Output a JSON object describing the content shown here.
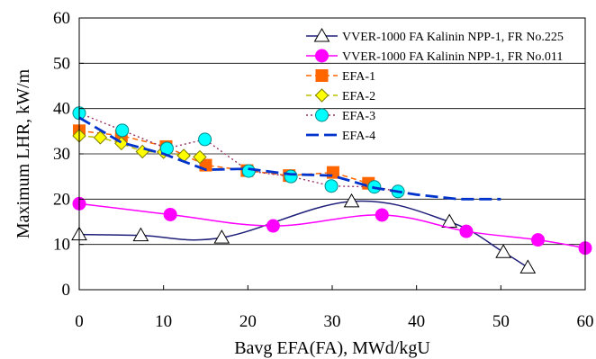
{
  "chart_data": {
    "type": "line",
    "xlabel": "Bavg EFA(FA), MWd/kgU",
    "ylabel": "Maximum LHR, kW/m",
    "xlim": [
      0,
      60
    ],
    "ylim": [
      0,
      60
    ],
    "xticks": [
      "0",
      "10",
      "20",
      "30",
      "40",
      "50",
      "60"
    ],
    "yticks": [
      "0",
      "10",
      "20",
      "30",
      "40",
      "50",
      "60"
    ],
    "grid": "horizontal",
    "legend_position": "top-right",
    "series": [
      {
        "name": "VVER-1000 FA Kalinin NPP-1, FR No.225",
        "color": "#1f1f7a",
        "line": "solid-smooth",
        "marker": "triangle",
        "marker_fill": "#ffffff",
        "x": [
          0,
          7.3,
          16.9,
          32.3,
          43.9,
          50.3,
          53.2
        ],
        "y": [
          12.2,
          12.0,
          11.5,
          19.5,
          15.0,
          8.3,
          4.9
        ]
      },
      {
        "name": "VVER-1000 FA Kalinin NPP-1, FR No.011",
        "color": "#ff00ff",
        "line": "solid-smooth",
        "marker": "circle",
        "marker_fill": "#ff00ff",
        "x": [
          0,
          10.8,
          23.0,
          35.9,
          45.9,
          54.4,
          60.0
        ],
        "y": [
          19.0,
          16.6,
          14.1,
          16.5,
          12.9,
          11.0,
          9.2
        ]
      },
      {
        "name": "EFA-1",
        "color": "#ff6600",
        "line": "dashed",
        "marker": "square",
        "marker_fill": "#ff6600",
        "x": [
          0,
          5.0,
          10.3,
          15.0,
          19.9,
          24.9,
          30.1,
          34.3
        ],
        "y": [
          35.1,
          34.0,
          31.6,
          27.5,
          26.3,
          25.2,
          25.9,
          23.5
        ]
      },
      {
        "name": "EFA-2",
        "color": "#bfbf00",
        "line": "dashed",
        "marker": "diamond",
        "marker_fill": "#ffff00",
        "x": [
          0,
          2.5,
          5.0,
          7.5,
          10.0,
          12.4,
          14.3
        ],
        "y": [
          34.0,
          33.6,
          32.3,
          30.5,
          30.4,
          29.6,
          29.3
        ]
      },
      {
        "name": "EFA-3",
        "color": "#993366",
        "line": "dotted",
        "marker": "circle",
        "marker_fill": "#00ffff",
        "x": [
          0,
          5.1,
          10.4,
          14.9,
          20.1,
          25.1,
          29.9,
          35.0,
          37.8
        ],
        "y": [
          39.0,
          35.2,
          31.2,
          33.2,
          26.2,
          25.0,
          22.9,
          22.7,
          21.7
        ]
      },
      {
        "name": "EFA-4",
        "color": "#0033cc",
        "line": "long-dash",
        "marker": "none",
        "marker_fill": "none",
        "x": [
          0,
          5,
          10,
          15,
          20,
          25,
          30,
          35,
          40,
          45,
          50
        ],
        "y": [
          38,
          32.5,
          30,
          26.5,
          26.7,
          25.5,
          25.2,
          22.5,
          21,
          20,
          20
        ]
      }
    ]
  }
}
